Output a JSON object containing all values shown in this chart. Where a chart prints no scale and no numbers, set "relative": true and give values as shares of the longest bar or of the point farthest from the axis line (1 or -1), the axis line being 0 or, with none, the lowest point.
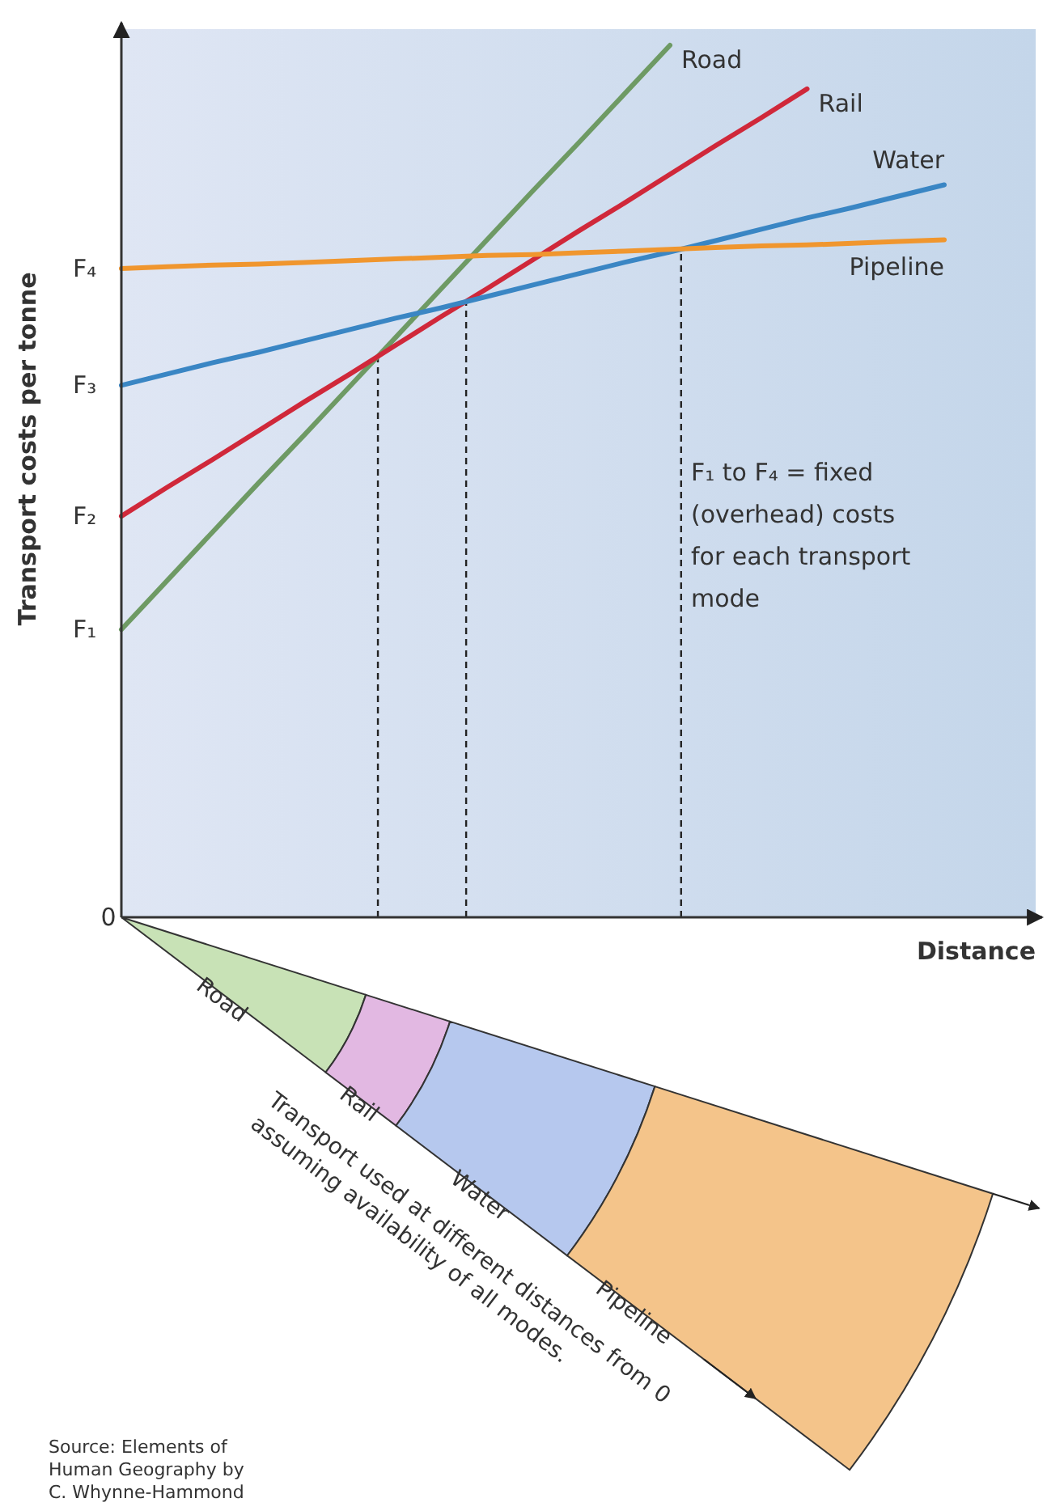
{
  "chart_data": {
    "type": "line",
    "relative": true,
    "ylabel": "Transport costs per tonne",
    "xlabel": "Distance",
    "categories": [
      null,
      null,
      null,
      null,
      null,
      null,
      null,
      null,
      null,
      null,
      null,
      null,
      null,
      null,
      null,
      null,
      null,
      null,
      null,
      null,
      null
    ],
    "series": [
      {
        "name": "Road",
        "color": "#6e9a64",
        "values": [
          0.33,
          0.386,
          0.442,
          0.498,
          0.553,
          0.609,
          0.665,
          0.721,
          0.777,
          0.833,
          0.888,
          0.944,
          1,
          null,
          null,
          null,
          null,
          null,
          null,
          null,
          null
        ]
      },
      {
        "name": "Rail",
        "color": "#d0283a",
        "values": [
          0.46,
          0.493,
          0.525,
          0.558,
          0.591,
          0.623,
          0.656,
          0.689,
          0.721,
          0.754,
          0.787,
          0.819,
          0.852,
          0.885,
          0.917,
          0.95,
          null,
          null,
          null,
          null,
          null
        ]
      },
      {
        "name": "Water",
        "color": "#3a86c4",
        "values": [
          0.61,
          0.623,
          0.636,
          0.648,
          0.661,
          0.674,
          0.687,
          0.699,
          0.712,
          0.725,
          0.738,
          0.751,
          0.763,
          0.776,
          0.789,
          0.802,
          0.814,
          0.827,
          0.84,
          null,
          null
        ]
      },
      {
        "name": "Pipeline",
        "color": "#f0962e",
        "values": [
          0.744,
          0.746,
          0.748,
          0.749,
          0.751,
          0.753,
          0.755,
          0.757,
          0.759,
          0.76,
          0.762,
          0.764,
          0.766,
          0.768,
          0.77,
          0.771,
          0.773,
          0.775,
          0.777,
          null,
          null
        ]
      }
    ],
    "ref_lines": [
      {
        "axis": "x",
        "line_style": "dashed",
        "color": "#222222"
      },
      {
        "axis": "x",
        "line_style": "dashed",
        "color": "#222222"
      },
      {
        "axis": "x",
        "line_style": "dashed",
        "color": "#222222"
      }
    ],
    "annotations": [
      "F₁",
      "F₂",
      "F₃",
      "F₄",
      "0",
      "F₁ to F₄ = fixed (overhead) costs for each transport mode",
      "Transport used at different distances from 0 assuming availability of all modes.",
      "Road",
      "Rail",
      "Water",
      "Pipeline",
      "Source: Elements of Human Geography by C. Whynne-Hammond"
    ]
  }
}
